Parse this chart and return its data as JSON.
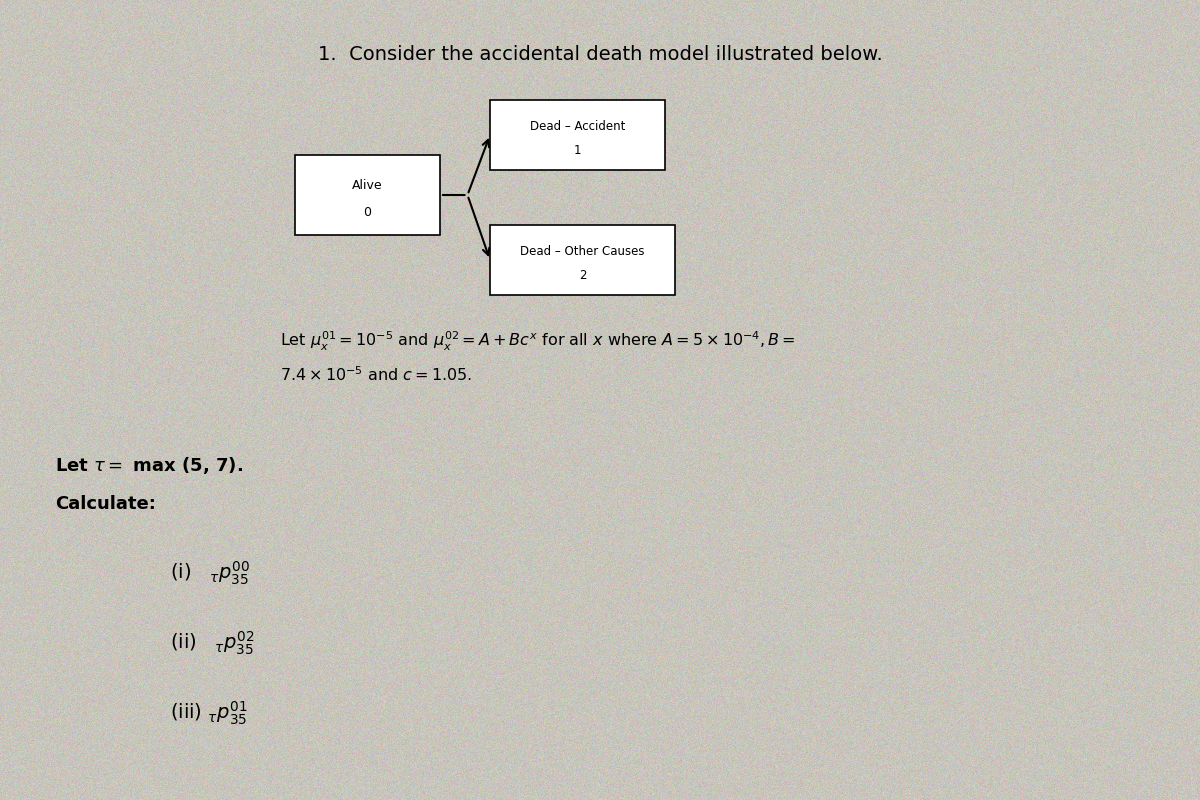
{
  "background_color": "#c8c5bc",
  "title": "1.  Consider the accidental death model illustrated below.",
  "title_fontsize": 14,
  "title_fontweight": "normal",
  "box_alive_label": "Alive",
  "box_alive_number": "0",
  "box_accident_label": "Dead – Accident",
  "box_accident_number": "1",
  "box_other_label": "Dead – Other Causes",
  "box_other_number": "2",
  "formula_line1": "Let $\\mu_x^{01} = 10^{-5}$ and $\\mu_x^{02} = A + Bc^x$ for all $x$ where $A = 5 \\times 10^{-4}, B =$",
  "formula_line2": "$7.4 \\times 10^{-5}$ and $c = 1.05$.",
  "tau_line1": "Let $\\tau =$ max (5, 7).",
  "tau_line2": "Calculate:",
  "item_i": "(i)   $_{\\tau}p_{35}^{00}$",
  "item_ii": "(ii)   $_{\\tau}p_{35}^{02}$",
  "item_iii": "(iii) $_{\\tau}p_{35}^{01}$"
}
